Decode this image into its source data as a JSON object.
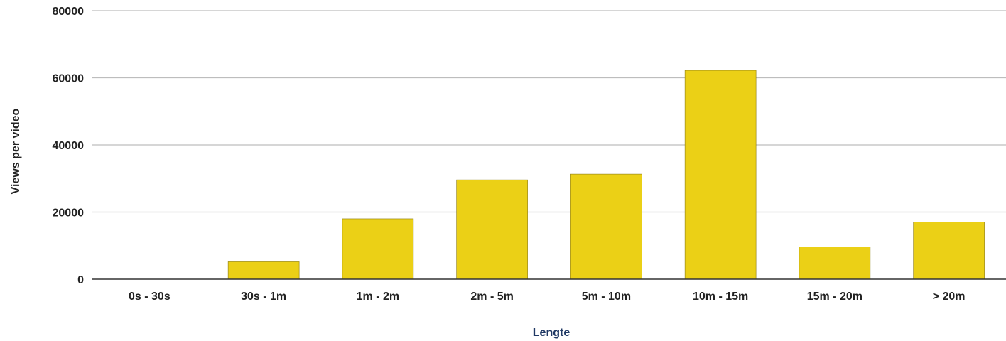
{
  "chart_data": {
    "type": "bar",
    "title": "",
    "xlabel": "Lengte",
    "ylabel": "Views per video",
    "categories": [
      "0s - 30s",
      "30s - 1m",
      "1m - 2m",
      "2m - 5m",
      "5m - 10m",
      "10m - 15m",
      "15m - 20m",
      "> 20m"
    ],
    "values": [
      0,
      5200,
      18000,
      29600,
      31300,
      62200,
      9600,
      17000
    ],
    "ylim": [
      0,
      80000
    ],
    "yticks": [
      0,
      20000,
      40000,
      60000,
      80000
    ],
    "ytick_labels": [
      "0",
      "20000",
      "40000",
      "60000",
      "80000"
    ],
    "grid": true,
    "legend": "none",
    "colors": {
      "bar": "#ebd016",
      "bar_stroke": "#8a7a10",
      "grid": "#bdbdbd",
      "baseline": "#333333",
      "xlabel": "#1f3864",
      "ylabel": "#222222",
      "tick_text": "#222222"
    }
  }
}
